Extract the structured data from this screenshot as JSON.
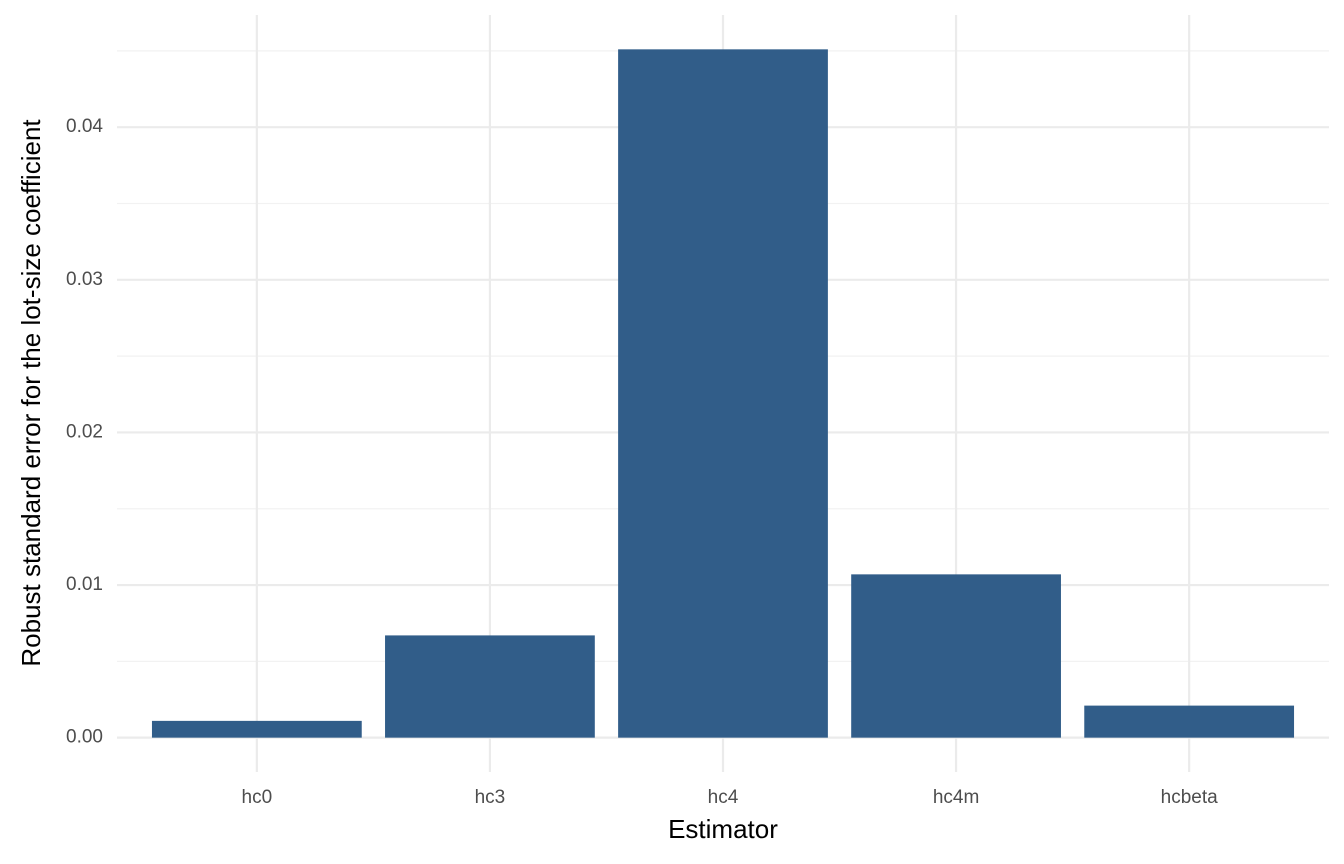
{
  "chart_data": {
    "type": "bar",
    "x_label": "Estimator",
    "y_label": "Robust standard error for the lot-size coefficient",
    "categories": [
      "hc0",
      "hc3",
      "hc4",
      "hc4m",
      "hcbeta"
    ],
    "values": [
      0.0011,
      0.0067,
      0.0451,
      0.0107,
      0.0021
    ],
    "color": "#315d89",
    "ylim": [
      -0.00225,
      0.04735
    ],
    "yticks": [
      {
        "value": 0,
        "label": "0.00"
      },
      {
        "value": 0.01,
        "label": "0.01"
      },
      {
        "value": 0.02,
        "label": "0.02"
      },
      {
        "value": 0.03,
        "label": "0.03"
      },
      {
        "value": 0.04,
        "label": "0.04"
      }
    ],
    "yticks_minor": [
      0.005,
      0.015,
      0.025,
      0.035,
      0.045
    ],
    "grid": true
  }
}
